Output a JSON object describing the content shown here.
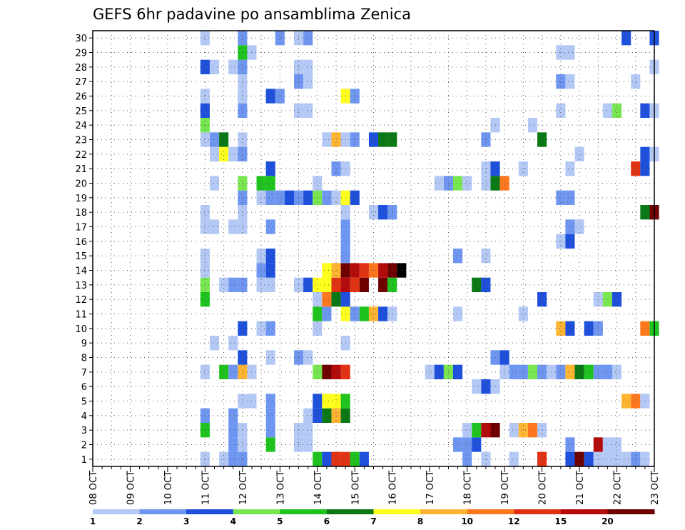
{
  "chart_data": {
    "type": "heatmap",
    "title": "GEFS 6hr padavine po ansamblima Zenica",
    "x_tick_labels": [
      "08 OCT",
      "09 OCT",
      "10 OCT",
      "11 OCT",
      "12 OCT",
      "13 OCT",
      "14 OCT",
      "15 OCT",
      "16 OCT",
      "17 OCT",
      "18 OCT",
      "19 OCT",
      "20 OCT",
      "21 OCT",
      "22 OCT",
      "23 OCT"
    ],
    "y_tick_labels": [
      "1",
      "2",
      "3",
      "4",
      "5",
      "6",
      "7",
      "8",
      "9",
      "10",
      "11",
      "12",
      "13",
      "14",
      "15",
      "16",
      "17",
      "18",
      "19",
      "20",
      "21",
      "22",
      "23",
      "24",
      "25",
      "26",
      "27",
      "28",
      "29",
      "30"
    ],
    "xlim": [
      0,
      60
    ],
    "ylim": [
      0.5,
      30.5
    ],
    "grid": true,
    "colorbar": {
      "position": "bottom",
      "labels": [
        "1",
        "2",
        "3",
        "4",
        "5",
        "6",
        "7",
        "8",
        "10",
        "12",
        "15",
        "20"
      ],
      "colors": [
        "#b4c8f5",
        "#6e96f0",
        "#1e50dc",
        "#78e650",
        "#1ec31e",
        "#0a7814",
        "#ffff1e",
        "#ffb432",
        "#ff781e",
        "#e13214",
        "#b40a0a",
        "#6e0000"
      ]
    },
    "cells": [
      [
        12,
        1,
        0
      ],
      [
        14,
        1,
        0
      ],
      [
        15,
        1,
        1
      ],
      [
        16,
        1,
        1
      ],
      [
        24,
        1,
        4
      ],
      [
        25,
        1,
        2
      ],
      [
        26,
        1,
        9
      ],
      [
        27,
        1,
        9
      ],
      [
        28,
        1,
        4
      ],
      [
        29,
        1,
        2
      ],
      [
        40,
        1,
        1
      ],
      [
        42,
        1,
        0
      ],
      [
        45,
        1,
        0
      ],
      [
        48,
        1,
        9
      ],
      [
        51,
        1,
        2
      ],
      [
        52,
        1,
        11
      ],
      [
        53,
        1,
        2
      ],
      [
        54,
        1,
        0
      ],
      [
        55,
        1,
        0
      ],
      [
        56,
        1,
        0
      ],
      [
        57,
        1,
        0
      ],
      [
        58,
        1,
        1
      ],
      [
        59,
        1,
        0
      ],
      [
        15,
        2,
        1
      ],
      [
        16,
        2,
        0
      ],
      [
        19,
        2,
        4
      ],
      [
        22,
        2,
        0
      ],
      [
        23,
        2,
        0
      ],
      [
        39,
        2,
        1
      ],
      [
        40,
        2,
        1
      ],
      [
        41,
        2,
        2
      ],
      [
        51,
        2,
        1
      ],
      [
        54,
        2,
        10
      ],
      [
        55,
        2,
        0
      ],
      [
        56,
        2,
        0
      ],
      [
        12,
        3,
        4
      ],
      [
        15,
        3,
        1
      ],
      [
        16,
        3,
        0
      ],
      [
        19,
        3,
        1
      ],
      [
        22,
        3,
        0
      ],
      [
        23,
        3,
        0
      ],
      [
        40,
        3,
        0
      ],
      [
        41,
        3,
        4
      ],
      [
        42,
        3,
        10
      ],
      [
        43,
        3,
        11
      ],
      [
        45,
        3,
        0
      ],
      [
        46,
        3,
        7
      ],
      [
        47,
        3,
        8
      ],
      [
        48,
        3,
        0
      ],
      [
        12,
        4,
        1
      ],
      [
        15,
        4,
        1
      ],
      [
        19,
        4,
        1
      ],
      [
        23,
        4,
        0
      ],
      [
        24,
        4,
        2
      ],
      [
        25,
        4,
        5
      ],
      [
        26,
        4,
        7
      ],
      [
        27,
        4,
        5
      ],
      [
        16,
        5,
        0
      ],
      [
        17,
        5,
        0
      ],
      [
        19,
        5,
        1
      ],
      [
        24,
        5,
        2
      ],
      [
        25,
        5,
        6
      ],
      [
        26,
        5,
        6
      ],
      [
        27,
        5,
        4
      ],
      [
        57,
        5,
        7
      ],
      [
        58,
        5,
        8
      ],
      [
        59,
        5,
        0
      ],
      [
        41,
        6,
        0
      ],
      [
        42,
        6,
        2
      ],
      [
        43,
        6,
        0
      ],
      [
        12,
        7,
        0
      ],
      [
        14,
        7,
        4
      ],
      [
        15,
        7,
        1
      ],
      [
        16,
        7,
        7
      ],
      [
        17,
        7,
        0
      ],
      [
        24,
        7,
        3
      ],
      [
        25,
        7,
        11
      ],
      [
        26,
        7,
        10
      ],
      [
        27,
        7,
        9
      ],
      [
        36,
        7,
        0
      ],
      [
        37,
        7,
        2
      ],
      [
        38,
        7,
        3
      ],
      [
        39,
        7,
        2
      ],
      [
        44,
        7,
        0
      ],
      [
        45,
        7,
        1
      ],
      [
        46,
        7,
        1
      ],
      [
        47,
        7,
        3
      ],
      [
        48,
        7,
        1
      ],
      [
        49,
        7,
        0
      ],
      [
        50,
        7,
        1
      ],
      [
        51,
        7,
        7
      ],
      [
        52,
        7,
        5
      ],
      [
        53,
        7,
        4
      ],
      [
        54,
        7,
        1
      ],
      [
        55,
        7,
        1
      ],
      [
        56,
        7,
        0
      ],
      [
        16,
        8,
        2
      ],
      [
        19,
        8,
        0
      ],
      [
        22,
        8,
        1
      ],
      [
        23,
        8,
        0
      ],
      [
        43,
        8,
        1
      ],
      [
        44,
        8,
        2
      ],
      [
        13,
        9,
        0
      ],
      [
        15,
        9,
        0
      ],
      [
        27,
        9,
        0
      ],
      [
        16,
        10,
        2
      ],
      [
        18,
        10,
        0
      ],
      [
        19,
        10,
        1
      ],
      [
        24,
        10,
        0
      ],
      [
        50,
        10,
        7
      ],
      [
        51,
        10,
        2
      ],
      [
        53,
        10,
        2
      ],
      [
        54,
        10,
        1
      ],
      [
        59,
        10,
        8
      ],
      [
        60,
        10,
        4
      ],
      [
        24,
        11,
        4
      ],
      [
        25,
        11,
        1
      ],
      [
        27,
        11,
        6
      ],
      [
        28,
        11,
        1
      ],
      [
        29,
        11,
        4
      ],
      [
        30,
        11,
        7
      ],
      [
        31,
        11,
        2
      ],
      [
        32,
        11,
        0
      ],
      [
        39,
        11,
        0
      ],
      [
        46,
        11,
        0
      ],
      [
        12,
        12,
        4
      ],
      [
        24,
        12,
        0
      ],
      [
        25,
        12,
        8
      ],
      [
        26,
        12,
        5
      ],
      [
        27,
        12,
        2
      ],
      [
        48,
        12,
        2
      ],
      [
        54,
        12,
        0
      ],
      [
        55,
        12,
        3
      ],
      [
        56,
        12,
        2
      ],
      [
        12,
        13,
        3
      ],
      [
        14,
        13,
        0
      ],
      [
        15,
        13,
        1
      ],
      [
        16,
        13,
        1
      ],
      [
        18,
        13,
        0
      ],
      [
        19,
        13,
        0
      ],
      [
        22,
        13,
        0
      ],
      [
        23,
        13,
        2
      ],
      [
        24,
        13,
        6
      ],
      [
        25,
        13,
        6
      ],
      [
        26,
        13,
        9
      ],
      [
        27,
        13,
        10
      ],
      [
        28,
        13,
        9
      ],
      [
        29,
        13,
        11
      ],
      [
        31,
        13,
        11
      ],
      [
        32,
        13,
        4
      ],
      [
        41,
        13,
        5
      ],
      [
        42,
        13,
        2
      ],
      [
        12,
        14,
        0
      ],
      [
        18,
        14,
        1
      ],
      [
        19,
        14,
        2
      ],
      [
        25,
        14,
        6
      ],
      [
        26,
        14,
        7
      ],
      [
        27,
        14,
        11
      ],
      [
        28,
        14,
        10
      ],
      [
        29,
        14,
        9
      ],
      [
        30,
        14,
        8
      ],
      [
        31,
        14,
        10
      ],
      [
        32,
        14,
        11
      ],
      [
        33,
        14,
        12
      ],
      [
        12,
        15,
        0
      ],
      [
        18,
        15,
        0
      ],
      [
        19,
        15,
        2
      ],
      [
        27,
        15,
        1
      ],
      [
        39,
        15,
        1
      ],
      [
        42,
        15,
        0
      ],
      [
        27,
        16,
        1
      ],
      [
        50,
        16,
        0
      ],
      [
        51,
        16,
        2
      ],
      [
        12,
        17,
        0
      ],
      [
        13,
        17,
        0
      ],
      [
        15,
        17,
        0
      ],
      [
        16,
        17,
        0
      ],
      [
        19,
        17,
        1
      ],
      [
        27,
        17,
        1
      ],
      [
        51,
        17,
        1
      ],
      [
        52,
        17,
        0
      ],
      [
        12,
        18,
        0
      ],
      [
        16,
        18,
        0
      ],
      [
        27,
        18,
        0
      ],
      [
        30,
        18,
        0
      ],
      [
        31,
        18,
        2
      ],
      [
        32,
        18,
        1
      ],
      [
        59,
        18,
        5
      ],
      [
        60,
        18,
        11
      ],
      [
        16,
        19,
        1
      ],
      [
        18,
        19,
        0
      ],
      [
        19,
        19,
        1
      ],
      [
        20,
        19,
        1
      ],
      [
        21,
        19,
        2
      ],
      [
        22,
        19,
        1
      ],
      [
        23,
        19,
        2
      ],
      [
        24,
        19,
        3
      ],
      [
        25,
        19,
        1
      ],
      [
        26,
        19,
        0
      ],
      [
        27,
        19,
        6
      ],
      [
        28,
        19,
        2
      ],
      [
        50,
        19,
        1
      ],
      [
        51,
        19,
        1
      ],
      [
        13,
        20,
        0
      ],
      [
        16,
        20,
        3
      ],
      [
        18,
        20,
        4
      ],
      [
        19,
        20,
        4
      ],
      [
        24,
        20,
        0
      ],
      [
        37,
        20,
        0
      ],
      [
        38,
        20,
        1
      ],
      [
        39,
        20,
        3
      ],
      [
        40,
        20,
        0
      ],
      [
        42,
        20,
        0
      ],
      [
        43,
        20,
        5
      ],
      [
        44,
        20,
        8
      ],
      [
        19,
        21,
        2
      ],
      [
        26,
        21,
        1
      ],
      [
        27,
        21,
        0
      ],
      [
        42,
        21,
        0
      ],
      [
        43,
        21,
        2
      ],
      [
        46,
        21,
        0
      ],
      [
        51,
        21,
        0
      ],
      [
        58,
        21,
        9
      ],
      [
        59,
        21,
        2
      ],
      [
        13,
        22,
        0
      ],
      [
        14,
        22,
        6
      ],
      [
        15,
        22,
        0
      ],
      [
        16,
        22,
        1
      ],
      [
        52,
        22,
        0
      ],
      [
        59,
        22,
        2
      ],
      [
        60,
        22,
        0
      ],
      [
        12,
        23,
        0
      ],
      [
        13,
        23,
        1
      ],
      [
        14,
        23,
        5
      ],
      [
        16,
        23,
        0
      ],
      [
        25,
        23,
        0
      ],
      [
        26,
        23,
        7
      ],
      [
        27,
        23,
        0
      ],
      [
        28,
        23,
        1
      ],
      [
        30,
        23,
        2
      ],
      [
        31,
        23,
        5
      ],
      [
        32,
        23,
        5
      ],
      [
        42,
        23,
        1
      ],
      [
        48,
        23,
        5
      ],
      [
        12,
        24,
        3
      ],
      [
        43,
        24,
        0
      ],
      [
        47,
        24,
        0
      ],
      [
        12,
        25,
        2
      ],
      [
        16,
        25,
        1
      ],
      [
        22,
        25,
        0
      ],
      [
        23,
        25,
        0
      ],
      [
        50,
        25,
        0
      ],
      [
        55,
        25,
        0
      ],
      [
        56,
        25,
        3
      ],
      [
        59,
        25,
        2
      ],
      [
        60,
        25,
        0
      ],
      [
        12,
        26,
        0
      ],
      [
        16,
        26,
        0
      ],
      [
        19,
        26,
        2
      ],
      [
        20,
        26,
        1
      ],
      [
        27,
        26,
        6
      ],
      [
        28,
        26,
        1
      ],
      [
        16,
        27,
        0
      ],
      [
        22,
        27,
        1
      ],
      [
        23,
        27,
        0
      ],
      [
        50,
        27,
        1
      ],
      [
        51,
        27,
        0
      ],
      [
        58,
        27,
        0
      ],
      [
        12,
        28,
        2
      ],
      [
        13,
        28,
        0
      ],
      [
        15,
        28,
        0
      ],
      [
        16,
        28,
        1
      ],
      [
        22,
        28,
        0
      ],
      [
        23,
        28,
        0
      ],
      [
        60,
        28,
        0
      ],
      [
        16,
        29,
        4
      ],
      [
        17,
        29,
        0
      ],
      [
        50,
        29,
        0
      ],
      [
        51,
        29,
        0
      ],
      [
        12,
        30,
        0
      ],
      [
        16,
        30,
        1
      ],
      [
        20,
        30,
        1
      ],
      [
        22,
        30,
        0
      ],
      [
        23,
        30,
        1
      ],
      [
        57,
        30,
        2
      ],
      [
        60,
        30,
        2
      ]
    ]
  }
}
